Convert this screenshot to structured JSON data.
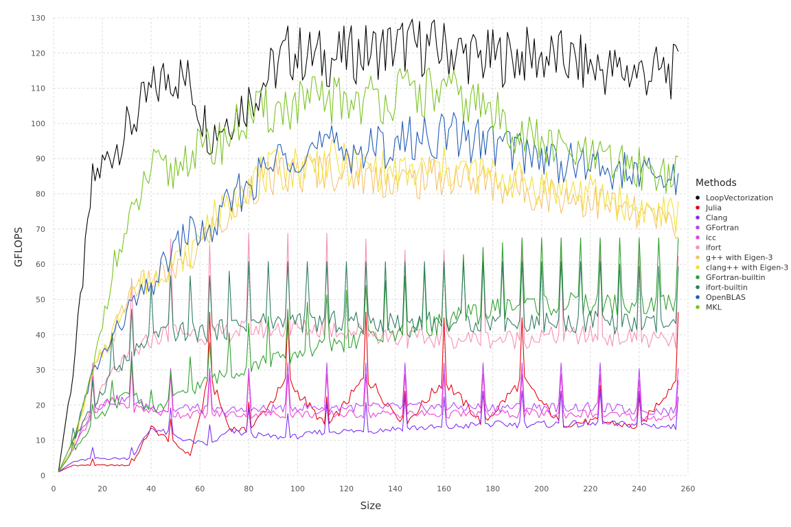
{
  "chart_data": {
    "type": "line",
    "xlabel": "Size",
    "ylabel": "GFLOPS",
    "xlim": [
      0,
      260
    ],
    "ylim": [
      0,
      130
    ],
    "xticks": [
      0,
      20,
      40,
      60,
      80,
      100,
      120,
      140,
      160,
      180,
      200,
      220,
      240,
      260
    ],
    "yticks": [
      0,
      10,
      20,
      30,
      40,
      50,
      60,
      70,
      80,
      90,
      100,
      110,
      120,
      130
    ],
    "x_range": [
      2,
      256
    ],
    "grid": true,
    "legend": {
      "title": "Methods",
      "position": "right"
    },
    "x": [
      2,
      8,
      16,
      24,
      32,
      40,
      48,
      56,
      64,
      72,
      80,
      96,
      112,
      128,
      144,
      160,
      176,
      192,
      208,
      224,
      240,
      256
    ],
    "series": [
      {
        "name": "LoopVectorization",
        "color": "#000000",
        "values": [
          1,
          30,
          86,
          95,
          103,
          112,
          118,
          115,
          100,
          105,
          110,
          124,
          122,
          124,
          126,
          125,
          122,
          123,
          122,
          119,
          118,
          118
        ]
      },
      {
        "name": "Julia",
        "color": "#e8000b",
        "values": [
          1,
          3,
          3,
          3,
          3,
          14,
          10,
          6,
          29,
          14,
          13,
          28,
          14,
          29,
          15,
          28,
          15,
          28,
          15,
          16,
          14,
          29
        ]
      },
      {
        "name": "Clang",
        "color": "#7b2ff7",
        "values": [
          1,
          4,
          5,
          5,
          5,
          14,
          12,
          10,
          9,
          13,
          12,
          11,
          13,
          13,
          14,
          14,
          15,
          15,
          15,
          15,
          15,
          14
        ]
      },
      {
        "name": "GFortran",
        "color": "#b845f5",
        "values": [
          1,
          8,
          20,
          22,
          22,
          20,
          19,
          20,
          19,
          19,
          19,
          20,
          20,
          20,
          20,
          20,
          20,
          20,
          20,
          20,
          19,
          19
        ]
      },
      {
        "name": "icc",
        "color": "#ee44d0",
        "values": [
          1,
          8,
          18,
          22,
          20,
          19,
          18,
          18,
          18,
          18,
          18,
          18,
          18,
          18,
          18,
          18,
          18,
          18,
          18,
          18,
          17,
          17
        ]
      },
      {
        "name": "ifort",
        "color": "#f78fb6",
        "values": [
          1,
          10,
          20,
          30,
          35,
          40,
          42,
          42,
          41,
          42,
          43,
          43,
          43,
          42,
          40,
          40,
          40,
          40,
          41,
          41,
          40,
          39
        ]
      },
      {
        "name": "g++ with Eigen-3",
        "color": "#f5c26b",
        "values": [
          1,
          8,
          30,
          40,
          55,
          57,
          60,
          62,
          72,
          75,
          85,
          88,
          90,
          88,
          86,
          88,
          86,
          84,
          82,
          80,
          76,
          74
        ]
      },
      {
        "name": "clang++ with Eigen-3",
        "color": "#f3e03a",
        "values": [
          1,
          8,
          30,
          42,
          55,
          57,
          62,
          65,
          75,
          78,
          87,
          90,
          92,
          90,
          88,
          90,
          88,
          86,
          84,
          82,
          78,
          76
        ]
      },
      {
        "name": "GFortran-builtin",
        "color": "#2ea02c",
        "values": [
          1,
          7,
          15,
          20,
          25,
          18,
          22,
          25,
          28,
          30,
          32,
          35,
          38,
          40,
          42,
          45,
          48,
          50,
          50,
          50,
          50,
          50
        ]
      },
      {
        "name": "ifort-builtin",
        "color": "#2e7d5e",
        "values": [
          1,
          10,
          20,
          30,
          35,
          40,
          42,
          42,
          42,
          43,
          45,
          45,
          45,
          45,
          45,
          45,
          45,
          45,
          45,
          45,
          44,
          44
        ]
      },
      {
        "name": "OpenBLAS",
        "color": "#1f5bb5",
        "values": [
          1,
          10,
          30,
          40,
          50,
          55,
          65,
          72,
          70,
          80,
          85,
          95,
          96,
          95,
          98,
          100,
          98,
          95,
          92,
          90,
          88,
          86
        ]
      },
      {
        "name": "MKL",
        "color": "#78c31f",
        "values": [
          1,
          10,
          30,
          60,
          75,
          90,
          88,
          95,
          95,
          100,
          105,
          108,
          110,
          110,
          112,
          112,
          108,
          100,
          95,
          92,
          90,
          88
        ]
      }
    ]
  }
}
